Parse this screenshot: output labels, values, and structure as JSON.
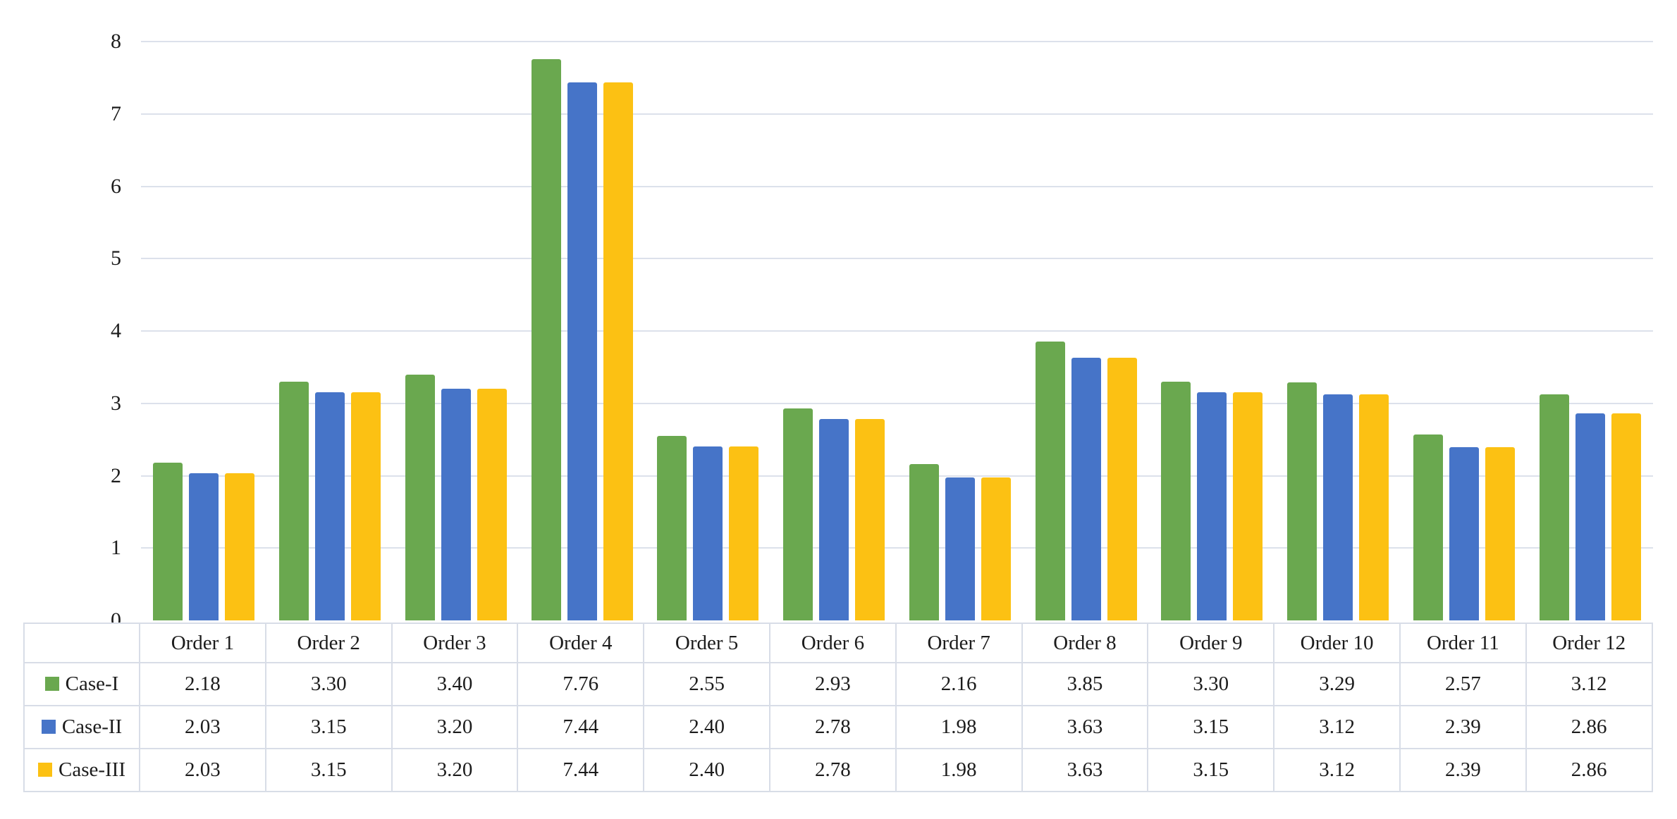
{
  "chart_data": {
    "type": "bar",
    "title": "",
    "subtitle": "",
    "xlabel": "",
    "ylabel": "",
    "categories": [
      "Order 1",
      "Order 2",
      "Order 3",
      "Order 4",
      "Order 5",
      "Order 6",
      "Order 7",
      "Order 8",
      "Order 9",
      "Order 10",
      "Order 11",
      "Order 12"
    ],
    "series": [
      {
        "name": "Case-I",
        "color": "#6aa84f",
        "values": [
          2.18,
          3.3,
          3.4,
          7.76,
          2.55,
          2.93,
          2.16,
          3.85,
          3.3,
          3.29,
          2.57,
          3.12
        ]
      },
      {
        "name": "Case-II",
        "color": "#4674c8",
        "values": [
          2.03,
          3.15,
          3.2,
          7.44,
          2.4,
          2.78,
          1.98,
          3.63,
          3.15,
          3.12,
          2.39,
          2.86
        ]
      },
      {
        "name": "Case-III",
        "color": "#fcc113",
        "values": [
          2.03,
          3.15,
          3.2,
          7.44,
          2.4,
          2.78,
          1.98,
          3.63,
          3.15,
          3.12,
          2.39,
          2.86
        ]
      }
    ],
    "ylim": [
      0,
      8
    ],
    "yticks": [
      0,
      1,
      2,
      3,
      4,
      5,
      6,
      7,
      8
    ],
    "grid": true,
    "gridlines": "horizontal",
    "legend_position": "data-table-left-column",
    "value_format_decimals": 2
  },
  "colors": {
    "grid_line": "#dce1eb",
    "table_border": "#d8dde7",
    "text": "#1c1c1c",
    "background": "#ffffff"
  }
}
